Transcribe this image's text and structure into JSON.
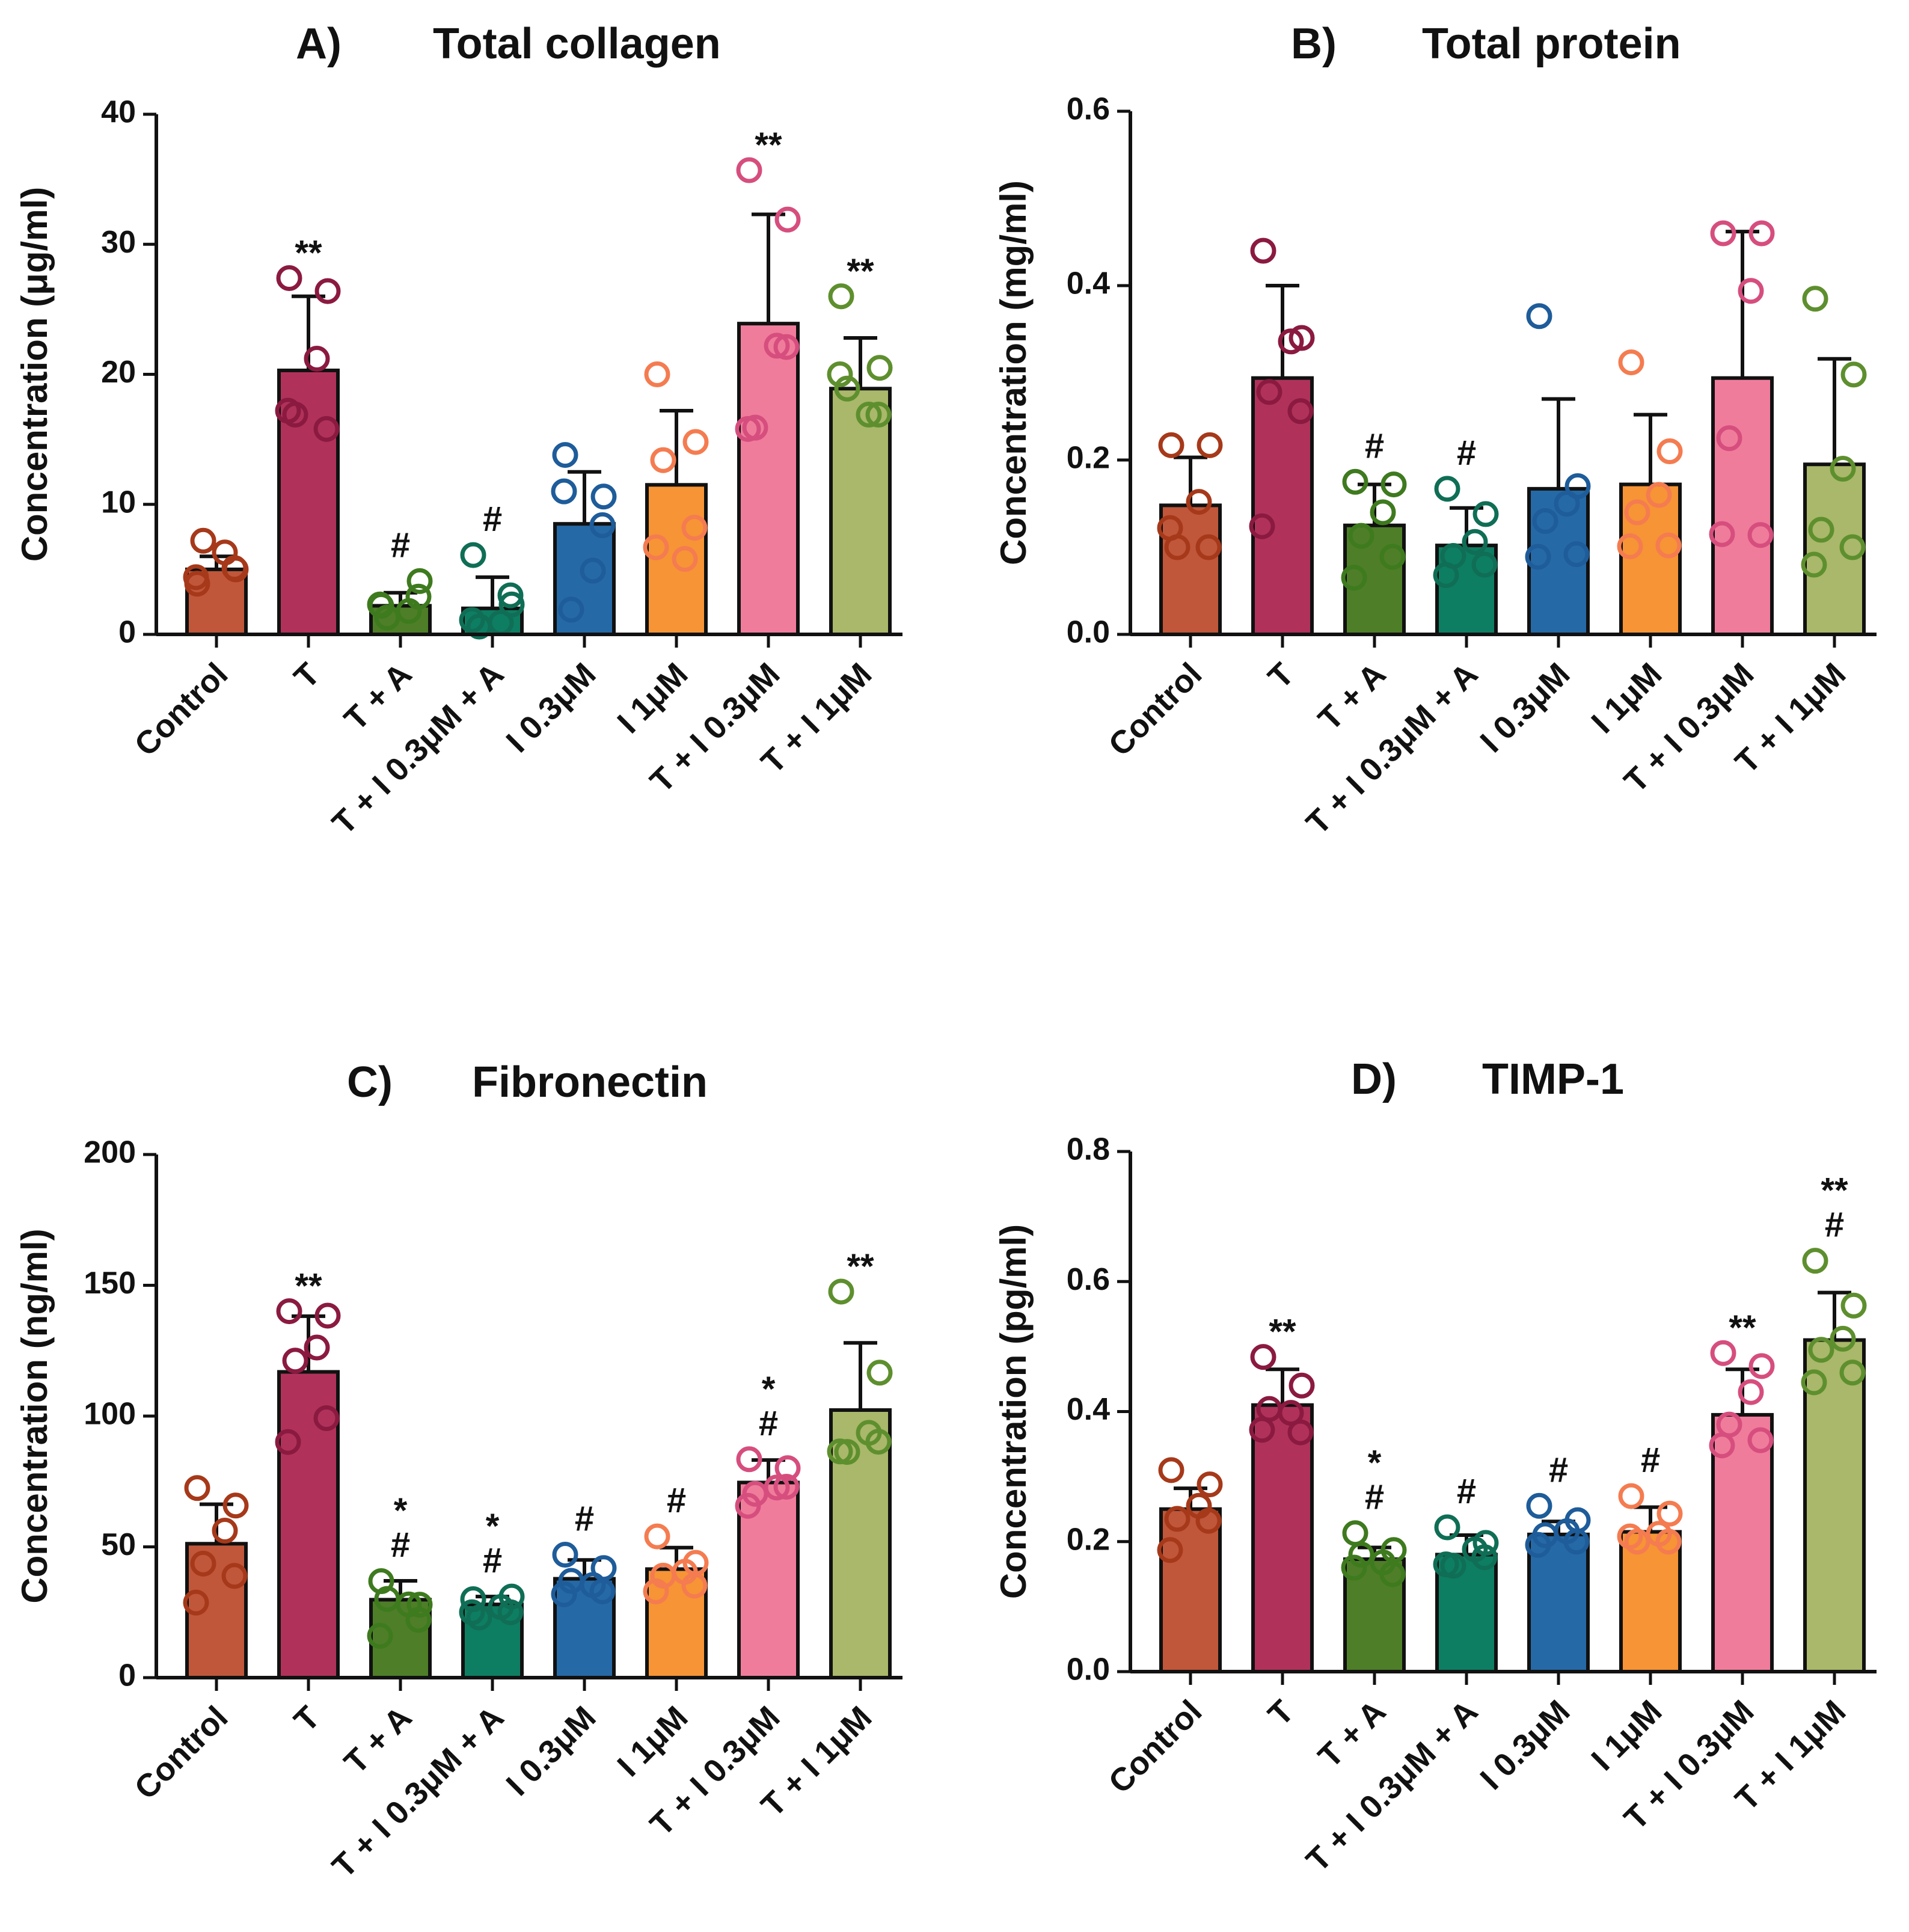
{
  "chart_data": [
    {
      "type": "bar",
      "panel": "A)",
      "title": "Total collagen",
      "ylabel": "Concentration (μg/ml)",
      "ylim": [
        0,
        40
      ],
      "yticks": [
        "0",
        "10",
        "20",
        "30",
        "40"
      ],
      "categories": [
        "Control",
        "T",
        "T + A",
        "T + I 0.3μM + A",
        "I 0.3μM",
        "I 1μM",
        "T + I 0.3μM",
        "T + I 1μM"
      ],
      "colors": [
        "#C0573A",
        "#B0325A",
        "#4E7E28",
        "#0E7E62",
        "#2569A6",
        "#F79435",
        "#F07C9B",
        "#A9B86A"
      ],
      "point_colors": [
        "#A6391A",
        "#8B1A40",
        "#3E7A1E",
        "#0F6E55",
        "#1E5C9A",
        "#F47C50",
        "#D64E7E",
        "#5E8F2E"
      ],
      "values": [
        5.0,
        20.3,
        2.2,
        2.0,
        8.5,
        11.5,
        23.9,
        18.9
      ],
      "errors": [
        1.0,
        5.7,
        1.0,
        2.4,
        4.0,
        5.7,
        8.4,
        3.9
      ],
      "points": [
        [
          3.9,
          5.0,
          6.3,
          7.2,
          5.1,
          4.4
        ],
        [
          27.4,
          26.4,
          21.2,
          16.9,
          15.8,
          17.2
        ],
        [
          2.2,
          4.1,
          1.8,
          1.3,
          2.9,
          2.3
        ],
        [
          6.1,
          2.3,
          0.9,
          0.6,
          3.0,
          1.1
        ],
        [
          13.8,
          10.6,
          4.9,
          1.9,
          8.4,
          11.0
        ],
        [
          20.0,
          14.8,
          5.8,
          13.4,
          8.2,
          6.7
        ],
        [
          35.7,
          31.9,
          22.2,
          15.9,
          22.1,
          15.8
        ],
        [
          26.0,
          20.5,
          16.9,
          18.9,
          16.9,
          20.0
        ]
      ],
      "annotations": [
        [],
        [
          "**"
        ],
        [
          "#"
        ],
        [
          "#"
        ],
        [],
        [],
        [
          "**"
        ],
        [
          "**"
        ]
      ]
    },
    {
      "type": "bar",
      "panel": "B)",
      "title": "Total protein",
      "ylabel": "Concentration (mg/ml)",
      "ylim": [
        0,
        0.6
      ],
      "yticks": [
        "0.0",
        "0.2",
        "0.4",
        "0.6"
      ],
      "categories": [
        "Control",
        "T",
        "T + A",
        "T + I 0.3μM + A",
        "I 0.3μM",
        "I 1μM",
        "T + I 0.3μM",
        "T + I 1μM"
      ],
      "colors": [
        "#C0573A",
        "#B0325A",
        "#4E7E28",
        "#0E7E62",
        "#2569A6",
        "#F79435",
        "#F07C9B",
        "#A9B86A"
      ],
      "point_colors": [
        "#A6391A",
        "#8B1A40",
        "#3E7A1E",
        "#0F6E55",
        "#1E5C9A",
        "#F47C50",
        "#D64E7E",
        "#5E8F2E"
      ],
      "values": [
        0.148,
        0.294,
        0.125,
        0.102,
        0.167,
        0.172,
        0.294,
        0.195
      ],
      "errors": [
        0.055,
        0.106,
        0.047,
        0.043,
        0.103,
        0.08,
        0.168,
        0.121
      ],
      "points": [
        [
          0.217,
          0.217,
          0.152,
          0.1,
          0.1,
          0.122
        ],
        [
          0.44,
          0.34,
          0.336,
          0.278,
          0.256,
          0.124
        ],
        [
          0.175,
          0.172,
          0.14,
          0.113,
          0.089,
          0.065
        ],
        [
          0.167,
          0.138,
          0.106,
          0.09,
          0.08,
          0.068
        ],
        [
          0.365,
          0.17,
          0.15,
          0.13,
          0.092,
          0.089
        ],
        [
          0.312,
          0.21,
          0.16,
          0.14,
          0.102,
          0.101
        ],
        [
          0.46,
          0.46,
          0.394,
          0.225,
          0.114,
          0.115
        ],
        [
          0.385,
          0.298,
          0.19,
          0.12,
          0.1,
          0.08
        ]
      ],
      "annotations": [
        [],
        [],
        [
          "#"
        ],
        [
          "#"
        ],
        [],
        [],
        [],
        []
      ]
    },
    {
      "type": "bar",
      "panel": "C)",
      "title": "Fibronectin",
      "ylabel": "Concentration (ng/ml)",
      "ylim": [
        0,
        200
      ],
      "yticks": [
        "0",
        "50",
        "100",
        "150",
        "200"
      ],
      "categories": [
        "Control",
        "T",
        "T + A",
        "T + I 0.3μM + A",
        "I 0.3μM",
        "I 1μM",
        "T + I 0.3μM",
        "T + I 1μM"
      ],
      "colors": [
        "#C0573A",
        "#B0325A",
        "#4E7E28",
        "#0E7E62",
        "#2569A6",
        "#F79435",
        "#F07C9B",
        "#A9B86A"
      ],
      "point_colors": [
        "#A6391A",
        "#8B1A40",
        "#3E7A1E",
        "#0F6E55",
        "#1E5C9A",
        "#F47C50",
        "#D64E7E",
        "#5E8F2E"
      ],
      "values": [
        51.2,
        116.9,
        29.8,
        28.0,
        37.8,
        41.5,
        74.6,
        102.3
      ],
      "errors": [
        15.1,
        21.3,
        7.2,
        3.0,
        7.2,
        8.2,
        8.6,
        25.7
      ],
      "points": [
        [
          72.5,
          65.8,
          56.2,
          43.6,
          38.9,
          28.7
        ],
        [
          140.1,
          138.4,
          126.2,
          121.2,
          99.2,
          90.1
        ],
        [
          36.9,
          27.9,
          28.0,
          30.1,
          22.1,
          16.0
        ],
        [
          30.0,
          31.0,
          27.0,
          23.0,
          25.0,
          25.0
        ],
        [
          47.0,
          41.9,
          35.4,
          37.0,
          33.0,
          31.9
        ],
        [
          54.0,
          43.9,
          40.5,
          39.0,
          35.2,
          33.0
        ],
        [
          83.5,
          80.1,
          72.7,
          70.3,
          73.0,
          65.7
        ],
        [
          147.6,
          116.6,
          93.6,
          86.3,
          90.2,
          86.5
        ]
      ],
      "annotations": [
        [],
        [
          "**"
        ],
        [
          "*",
          "#"
        ],
        [
          "*",
          "#"
        ],
        [
          "#"
        ],
        [
          "#"
        ],
        [
          "*",
          "#"
        ],
        [
          "**"
        ]
      ]
    },
    {
      "type": "bar",
      "panel": "D)",
      "title": "TIMP-1",
      "ylabel": "Concentration (pg/ml)",
      "ylim": [
        0,
        0.8
      ],
      "yticks": [
        "0.0",
        "0.2",
        "0.4",
        "0.6",
        "0.8"
      ],
      "categories": [
        "Control",
        "T",
        "T + A",
        "T + I 0.3μM + A",
        "I 0.3μM",
        "I 1μM",
        "T + I 0.3μM",
        "T + I 1μM"
      ],
      "colors": [
        "#C0573A",
        "#B0325A",
        "#4E7E28",
        "#0E7E62",
        "#2569A6",
        "#F79435",
        "#F07C9B",
        "#A9B86A"
      ],
      "point_colors": [
        "#A6391A",
        "#8B1A40",
        "#3E7A1E",
        "#0F6E55",
        "#1E5C9A",
        "#F47C50",
        "#D64E7E",
        "#5E8F2E"
      ],
      "values": [
        0.25,
        0.41,
        0.173,
        0.18,
        0.211,
        0.215,
        0.395,
        0.51
      ],
      "errors": [
        0.032,
        0.055,
        0.018,
        0.03,
        0.02,
        0.038,
        0.07,
        0.073
      ],
      "points": [
        [
          0.31,
          0.288,
          0.255,
          0.235,
          0.232,
          0.187
        ],
        [
          0.484,
          0.44,
          0.398,
          0.404,
          0.368,
          0.372
        ],
        [
          0.213,
          0.187,
          0.168,
          0.18,
          0.15,
          0.16
        ],
        [
          0.222,
          0.198,
          0.188,
          0.163,
          0.176,
          0.165
        ],
        [
          0.255,
          0.233,
          0.216,
          0.21,
          0.2,
          0.195
        ],
        [
          0.27,
          0.243,
          0.212,
          0.2,
          0.2,
          0.208
        ],
        [
          0.49,
          0.47,
          0.43,
          0.38,
          0.356,
          0.348
        ],
        [
          0.632,
          0.563,
          0.512,
          0.495,
          0.46,
          0.445
        ]
      ],
      "annotations": [
        [],
        [
          "**"
        ],
        [
          "*",
          "#"
        ],
        [
          "#"
        ],
        [
          "#"
        ],
        [
          "#"
        ],
        [
          "**"
        ],
        [
          "**",
          "#"
        ]
      ]
    }
  ]
}
